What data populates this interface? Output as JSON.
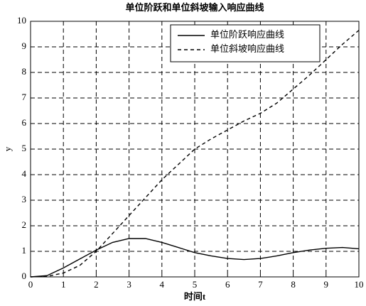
{
  "chart_data": {
    "type": "line",
    "title": "单位阶跃和单位斜坡输入响应曲线",
    "x_label": "时间t",
    "y_label": "y",
    "x": [
      0,
      0.5,
      1,
      1.5,
      2,
      2.5,
      3,
      3.5,
      4,
      4.5,
      5,
      5.5,
      6,
      6.5,
      7,
      7.5,
      8,
      8.5,
      9,
      9.5,
      10
    ],
    "series": [
      {
        "name": "单位阶跃响应曲线",
        "color": "#000000",
        "linestyle": "solid",
        "values": [
          0,
          0.05,
          0.35,
          0.7,
          1.05,
          1.35,
          1.5,
          1.5,
          1.35,
          1.15,
          0.95,
          0.82,
          0.72,
          0.68,
          0.72,
          0.82,
          0.95,
          1.05,
          1.12,
          1.15,
          1.1
        ]
      },
      {
        "name": "单位斜坡响应曲线",
        "color": "#000000",
        "linestyle": "dashed",
        "values": [
          0,
          0.02,
          0.15,
          0.45,
          1.0,
          1.7,
          2.4,
          3.1,
          3.8,
          4.4,
          5.0,
          5.4,
          5.75,
          6.1,
          6.4,
          6.8,
          7.35,
          7.9,
          8.5,
          9.1,
          9.65
        ]
      }
    ],
    "xlim": [
      0,
      10
    ],
    "ylim": [
      0,
      10
    ],
    "xticks": [
      0,
      1,
      2,
      3,
      4,
      5,
      6,
      7,
      8,
      9,
      10
    ],
    "yticks": [
      0,
      1,
      2,
      3,
      4,
      5,
      6,
      7,
      8,
      9,
      10
    ],
    "grid": true,
    "legend": "upper right"
  }
}
